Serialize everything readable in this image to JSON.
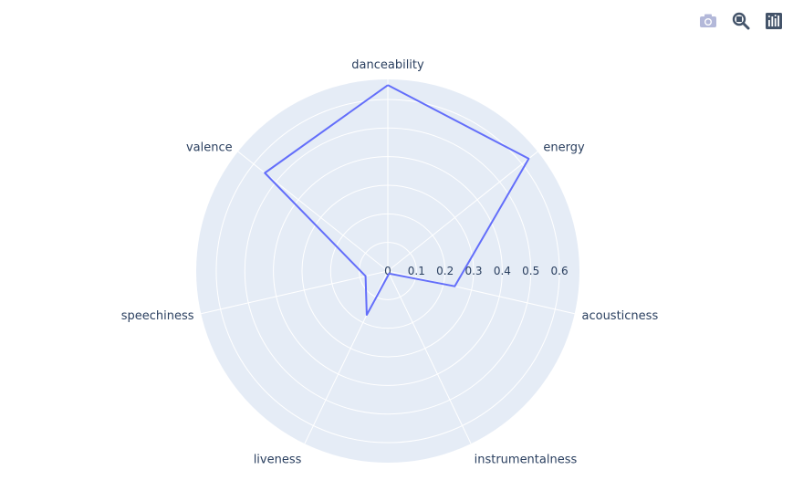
{
  "modebar": {
    "buttons": [
      {
        "name": "download-plot-button",
        "icon": "camera-icon",
        "title": "Download plot as a png"
      },
      {
        "name": "zoom-button",
        "icon": "zoom-icon",
        "title": "Zoom"
      },
      {
        "name": "plotly-logo-button",
        "icon": "plotly-logo-icon",
        "title": "Produced with Plotly"
      }
    ]
  },
  "colors": {
    "polar_bg": "#e5ecf6",
    "grid": "#ffffff",
    "trace": "#636efa",
    "text": "#2a3f5f",
    "modebar_inactive": "#b3b8d9",
    "modebar_active": "#44546a"
  },
  "chart_data": {
    "type": "radar",
    "categories": [
      "danceability",
      "energy",
      "acousticness",
      "instrumentalness",
      "liveness",
      "speechiness",
      "valence"
    ],
    "values": [
      0.65,
      0.63,
      0.24,
      0.01,
      0.17,
      0.08,
      0.55
    ],
    "radial_range": [
      0,
      0.67
    ],
    "radial_ticks": [
      "0",
      "0.1",
      "0.2",
      "0.3",
      "0.4",
      "0.5",
      "0.6"
    ],
    "radial_tick_values": [
      0,
      0.1,
      0.2,
      0.3,
      0.4,
      0.5,
      0.6
    ],
    "angular_rotation": 90,
    "direction": "clockwise",
    "grid": true,
    "showlegend": false
  }
}
